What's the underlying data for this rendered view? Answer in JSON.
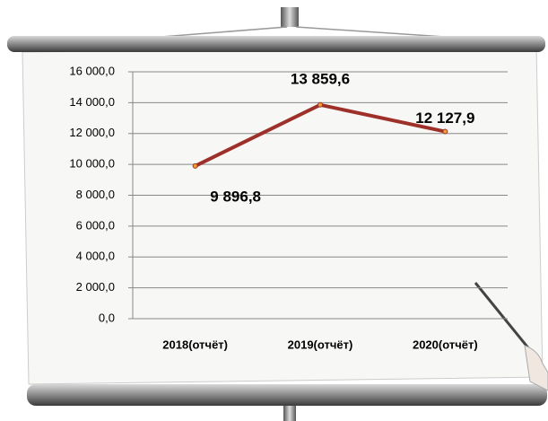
{
  "chart_data": {
    "type": "line",
    "categories": [
      "2018(отчёт)",
      "2019(отчёт)",
      "2020(отчёт)"
    ],
    "series": [
      {
        "color": "#9e302a",
        "values": [
          9896.8,
          13859.6,
          12127.9
        ],
        "value_labels": [
          "9 896,8",
          "13 859,6",
          "12 127,9"
        ]
      }
    ],
    "ylim": [
      0,
      16000
    ],
    "yticks": [
      {
        "value": 0,
        "label": "0,0"
      },
      {
        "value": 2000,
        "label": "2 000,0"
      },
      {
        "value": 4000,
        "label": "4 000,0"
      },
      {
        "value": 6000,
        "label": "6 000,0"
      },
      {
        "value": 8000,
        "label": "8 000,0"
      },
      {
        "value": 10000,
        "label": "10 000,0"
      },
      {
        "value": 12000,
        "label": "12 000,0"
      },
      {
        "value": 14000,
        "label": "14 000,0"
      },
      {
        "value": 16000,
        "label": "16 000,0"
      }
    ],
    "grid": true
  }
}
